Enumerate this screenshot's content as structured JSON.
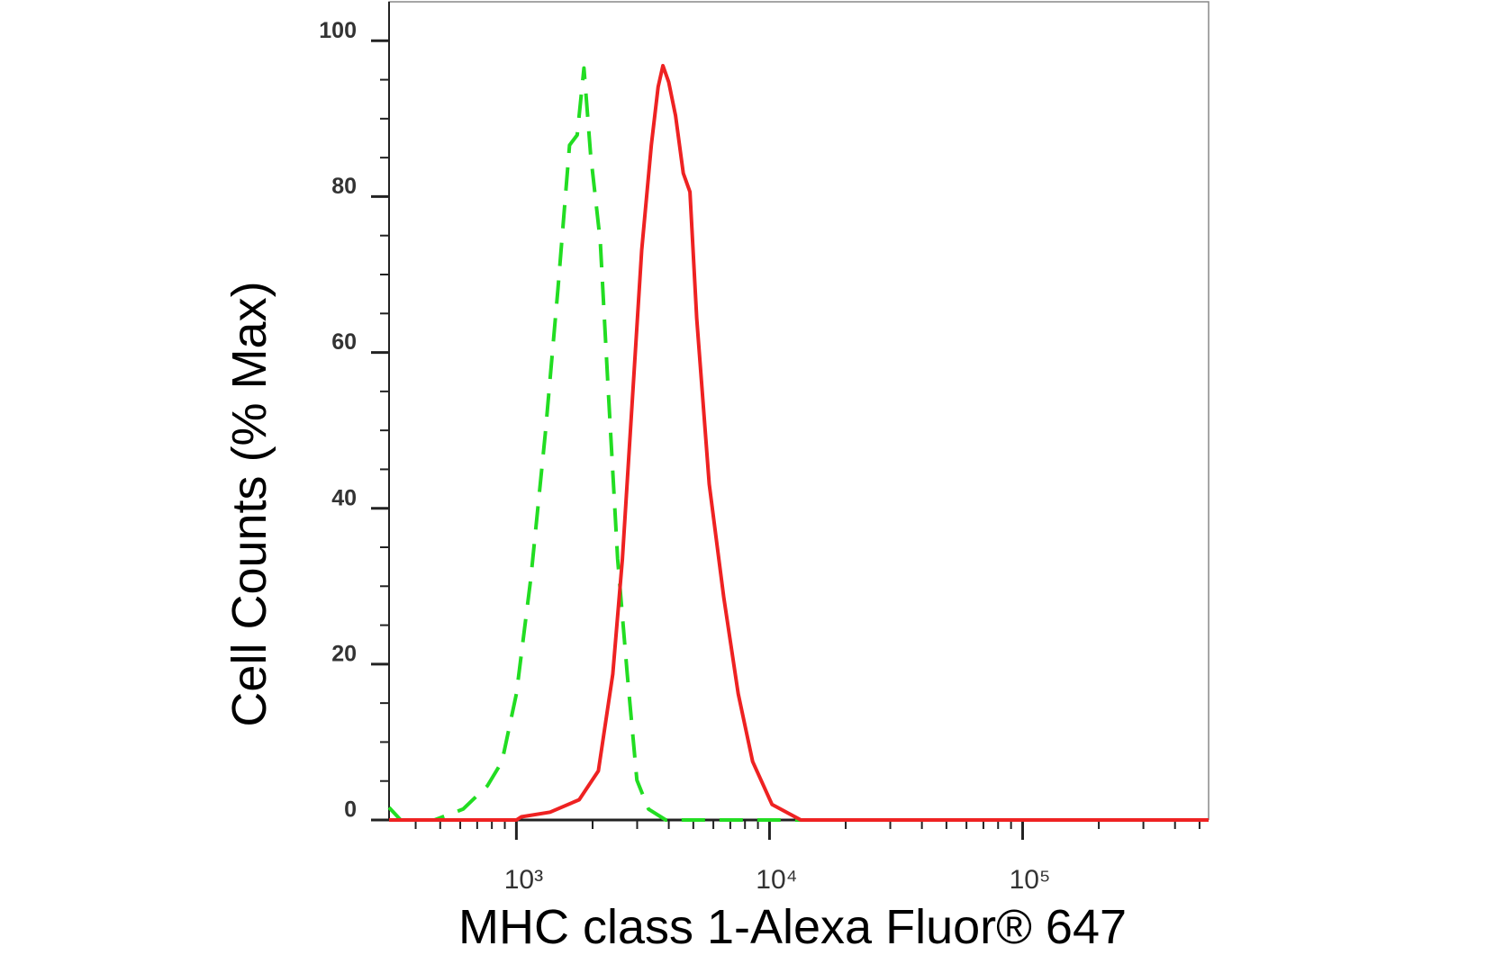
{
  "chart_data": {
    "type": "line",
    "x_label": "MHC class 1-Alexa Fluor® 647",
    "y_label": "Cell Counts (% Max)",
    "xscale": "log",
    "xlim": [
      314,
      543000
    ],
    "ylim": [
      0,
      105
    ],
    "xticks": [
      {
        "value": 1000,
        "label": "10³"
      },
      {
        "value": 10000,
        "label": "10⁴"
      },
      {
        "value": 100000,
        "label": "10⁵"
      }
    ],
    "yticks": [
      0,
      20,
      40,
      60,
      80,
      100
    ],
    "grid": false,
    "series": [
      {
        "color": "#22dd22",
        "dash": "dashed",
        "x": [
          314,
          349,
          474,
          616,
          769,
          877,
          1000,
          1140,
          1301,
          1459,
          1622,
          1738,
          1849,
          1965,
          2144,
          2300,
          2512,
          2742,
          2993,
          3326,
          3892,
          543000
        ],
        "values": [
          1.6,
          0,
          0,
          1.4,
          4.4,
          7.5,
          16.2,
          31.0,
          49.6,
          68.1,
          86.6,
          87.9,
          96.5,
          85.4,
          74.3,
          55.7,
          33.5,
          18.7,
          5.1,
          1.4,
          0,
          0
        ]
      },
      {
        "color": "#ee2222",
        "dash": "solid",
        "x": [
          314,
          1000,
          1045,
          1359,
          1770,
          2107,
          2404,
          2624,
          2864,
          3127,
          3412,
          3631,
          3793,
          3996,
          4252,
          4564,
          4851,
          5156,
          5777,
          6593,
          7522,
          8576,
          10227,
          13300,
          543000
        ],
        "values": [
          0,
          0,
          0.4,
          1.0,
          2.6,
          6.3,
          18.7,
          33.5,
          53.3,
          73.1,
          86.6,
          94.1,
          96.8,
          94.7,
          90.4,
          83.0,
          80.6,
          64.4,
          43.1,
          28.6,
          16.2,
          7.5,
          2.0,
          0,
          0
        ]
      }
    ]
  }
}
